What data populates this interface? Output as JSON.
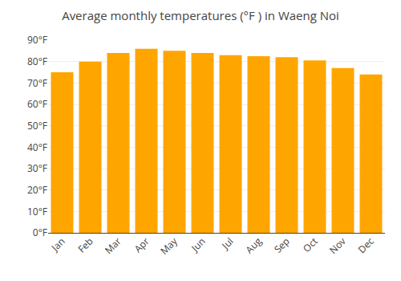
{
  "chart_data": {
    "type": "bar",
    "title": "Average monthly temperatures (°F ) in Waeng Noi",
    "categories": [
      "Jan",
      "Feb",
      "Mar",
      "Apr",
      "May",
      "Jun",
      "Jul",
      "Aug",
      "Sep",
      "Oct",
      "Nov",
      "Dec"
    ],
    "values": [
      75,
      80,
      84,
      86,
      85,
      84,
      83,
      82.5,
      82,
      80.5,
      77,
      74
    ],
    "color": "#FFA500",
    "ylim": [
      0,
      90
    ],
    "yticks": [
      {
        "value": 0,
        "label": "0°F"
      },
      {
        "value": 10,
        "label": "10°F"
      },
      {
        "value": 20,
        "label": "20°F"
      },
      {
        "value": 30,
        "label": "30°F"
      },
      {
        "value": 40,
        "label": "40°F"
      },
      {
        "value": 50,
        "label": "50°F"
      },
      {
        "value": 60,
        "label": "60°F"
      },
      {
        "value": 70,
        "label": "70°F"
      },
      {
        "value": 80,
        "label": "80°F"
      },
      {
        "value": 90,
        "label": "90°F"
      }
    ],
    "grid": true
  }
}
